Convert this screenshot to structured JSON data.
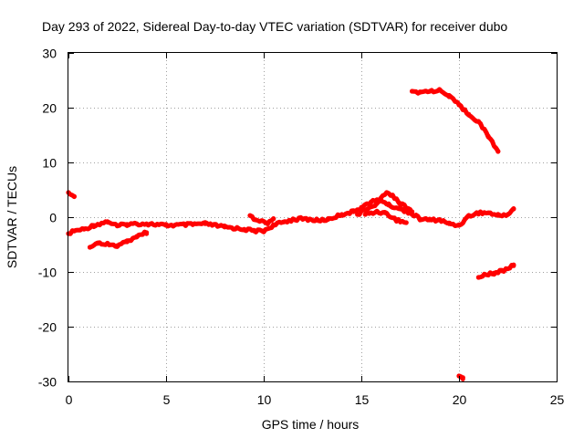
{
  "chart_data": {
    "type": "scatter",
    "title": "Day 293 of 2022, Sidereal Day-to-day VTEC variation (SDTVAR) for receiver dubo",
    "xlabel": "GPS time / hours",
    "ylabel": "SDTVAR / TECUs",
    "xlim": [
      0,
      25
    ],
    "ylim": [
      -30,
      30
    ],
    "xticks": [
      "0",
      "5",
      "10",
      "15",
      "20",
      "25"
    ],
    "yticks": [
      "30",
      "20",
      "10",
      "0",
      "-10",
      "-20",
      "-30"
    ],
    "grid": true,
    "color": "#ff0000",
    "series": [
      {
        "name": "main-band",
        "points": [
          [
            0.0,
            -3.0
          ],
          [
            0.3,
            -2.5
          ],
          [
            0.8,
            -2.2
          ],
          [
            1.3,
            -1.5
          ],
          [
            2.0,
            -0.8
          ],
          [
            2.5,
            -1.6
          ],
          [
            3.0,
            -1.3
          ],
          [
            3.5,
            -1.2
          ],
          [
            4.0,
            -1.2
          ],
          [
            5.0,
            -1.5
          ],
          [
            6.0,
            -1.4
          ],
          [
            7.0,
            -1.2
          ],
          [
            8.0,
            -1.8
          ],
          [
            9.0,
            -2.2
          ],
          [
            9.5,
            -2.5
          ],
          [
            10.0,
            -2.5
          ],
          [
            10.5,
            -1.5
          ],
          [
            11.0,
            -0.9
          ],
          [
            11.5,
            -0.4
          ],
          [
            12.0,
            -0.3
          ],
          [
            12.8,
            -0.6
          ],
          [
            13.3,
            -0.4
          ],
          [
            14.0,
            0.5
          ],
          [
            14.6,
            1.0
          ],
          [
            15.0,
            1.8
          ],
          [
            15.5,
            2.8
          ],
          [
            16.0,
            3.2
          ],
          [
            16.4,
            2.2
          ],
          [
            17.0,
            1.5
          ],
          [
            17.5,
            0.8
          ],
          [
            18.0,
            -0.3
          ],
          [
            18.5,
            -0.5
          ],
          [
            19.0,
            -0.5
          ],
          [
            19.5,
            -1.2
          ],
          [
            20.0,
            -1.5
          ],
          [
            20.5,
            0.2
          ],
          [
            21.0,
            0.8
          ],
          [
            21.5,
            0.8
          ],
          [
            22.0,
            0.3
          ],
          [
            22.5,
            0.5
          ],
          [
            22.8,
            1.5
          ]
        ]
      },
      {
        "name": "upper-branch",
        "points": [
          [
            14.8,
            0.5
          ],
          [
            15.3,
            1.5
          ],
          [
            15.8,
            2.5
          ],
          [
            16.3,
            4.5
          ],
          [
            16.6,
            4.0
          ],
          [
            17.0,
            2.5
          ],
          [
            17.6,
            1.0
          ]
        ]
      },
      {
        "name": "lower-branch",
        "points": [
          [
            15.2,
            0.5
          ],
          [
            15.8,
            1.0
          ],
          [
            16.2,
            0.8
          ],
          [
            16.8,
            -0.5
          ],
          [
            17.3,
            -1.0
          ]
        ]
      },
      {
        "name": "spike-near-10h",
        "points": [
          [
            9.3,
            0.3
          ],
          [
            9.6,
            -0.5
          ],
          [
            10.2,
            -1.0
          ],
          [
            10.5,
            -0.3
          ]
        ]
      },
      {
        "name": "segment-start-high",
        "points": [
          [
            0.0,
            4.5
          ],
          [
            0.3,
            3.8
          ]
        ]
      },
      {
        "name": "segment-early-low",
        "points": [
          [
            1.1,
            -5.5
          ],
          [
            1.5,
            -4.8
          ],
          [
            2.0,
            -4.8
          ],
          [
            2.5,
            -5.2
          ],
          [
            3.0,
            -4.5
          ],
          [
            3.5,
            -3.5
          ],
          [
            4.0,
            -2.8
          ]
        ]
      },
      {
        "name": "segment-late-high",
        "points": [
          [
            17.6,
            23.0
          ],
          [
            18.0,
            22.8
          ],
          [
            18.5,
            23.0
          ],
          [
            19.0,
            23.2
          ],
          [
            19.5,
            22.0
          ],
          [
            20.0,
            20.5
          ],
          [
            20.5,
            18.8
          ],
          [
            21.0,
            17.5
          ],
          [
            21.5,
            14.8
          ],
          [
            22.0,
            12.0
          ]
        ]
      },
      {
        "name": "segment-late-low",
        "points": [
          [
            21.0,
            -11.0
          ],
          [
            21.3,
            -10.5
          ],
          [
            21.8,
            -10.2
          ],
          [
            22.2,
            -9.8
          ],
          [
            22.6,
            -9.3
          ],
          [
            22.8,
            -8.7
          ]
        ]
      },
      {
        "name": "segment-near-20h",
        "points": [
          [
            20.0,
            -29.0
          ],
          [
            20.2,
            -29.3
          ]
        ]
      }
    ]
  }
}
